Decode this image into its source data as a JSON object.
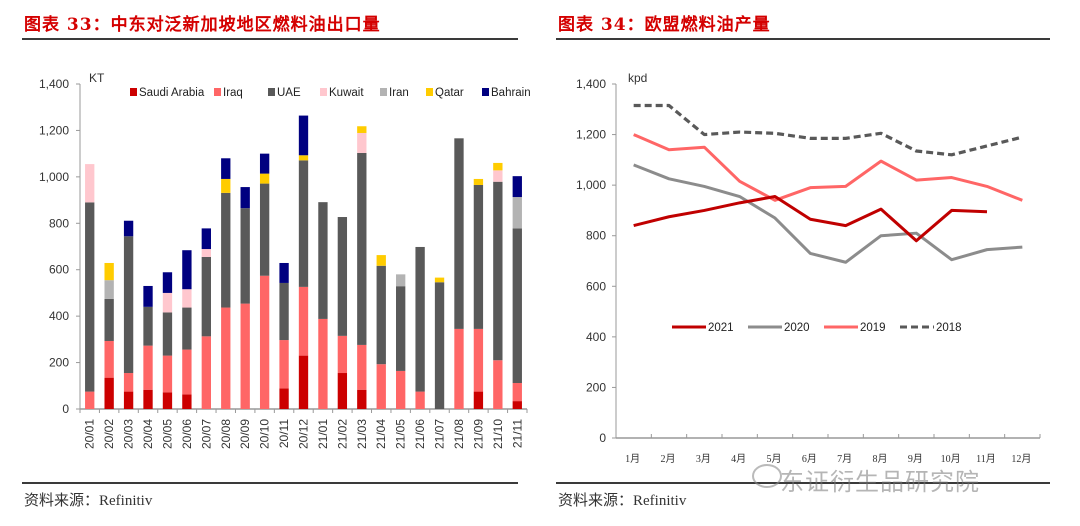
{
  "left_panel": {
    "title": "图表 33：中东对泛新加坡地区燃料油出口量",
    "source": "资料来源：Refinitiv"
  },
  "right_panel": {
    "title": "图表 34：欧盟燃料油产量",
    "source": "资料来源：Refinitiv"
  },
  "watermark": {
    "text": "东证衍生品研究院",
    "icon": "wechat-icon"
  },
  "chart_data": [
    {
      "type": "bar",
      "stacked": true,
      "title": "中东对泛新加坡地区燃料油出口量",
      "unit_label": "KT",
      "xlabel": "",
      "ylabel": "KT",
      "ylim": [
        0,
        1400
      ],
      "yticks": [
        0,
        200,
        400,
        600,
        800,
        1000,
        1200,
        1400
      ],
      "ytick_labels": [
        "0",
        "200",
        "400",
        "600",
        "800",
        "1,000",
        "1,200",
        "1,400"
      ],
      "grid": false,
      "legend_position": "top",
      "categories": [
        "20/01",
        "20/02",
        "20/03",
        "20/04",
        "20/05",
        "20/06",
        "20/07",
        "20/08",
        "20/09",
        "20/10",
        "20/11",
        "20/12",
        "21/01",
        "21/02",
        "21/03",
        "21/04",
        "21/05",
        "21/06",
        "21/07",
        "21/08",
        "21/09",
        "21/10",
        "21/11"
      ],
      "series": [
        {
          "name": "Saudi Arabia",
          "color": "#cc0000",
          "values": [
            0,
            135,
            75,
            83,
            72,
            63,
            0,
            0,
            0,
            0,
            89,
            230,
            0,
            155,
            83,
            0,
            0,
            0,
            0,
            0,
            75,
            0,
            34
          ]
        },
        {
          "name": "Iraq",
          "color": "#ff6666",
          "values": [
            75,
            158,
            80,
            190,
            158,
            193,
            313,
            437,
            454,
            574,
            208,
            296,
            388,
            160,
            193,
            193,
            164,
            75,
            0,
            345,
            270,
            210,
            78
          ]
        },
        {
          "name": "UAE",
          "color": "#595959",
          "values": [
            815,
            181,
            589,
            167,
            186,
            181,
            342,
            494,
            411,
            397,
            246,
            545,
            503,
            512,
            827,
            424,
            365,
            623,
            546,
            821,
            620,
            769,
            666
          ]
        },
        {
          "name": "Kuwait",
          "color": "#ffc7ce",
          "values": [
            165,
            0,
            0,
            0,
            84,
            79,
            34,
            0,
            0,
            0,
            0,
            0,
            0,
            0,
            86,
            0,
            0,
            0,
            0,
            0,
            0,
            49,
            0
          ]
        },
        {
          "name": "Iran",
          "color": "#b3b3b3",
          "values": [
            0,
            81,
            0,
            0,
            0,
            0,
            0,
            0,
            0,
            0,
            0,
            0,
            0,
            0,
            0,
            0,
            51,
            0,
            0,
            0,
            0,
            0,
            135
          ]
        },
        {
          "name": "Qatar",
          "color": "#ffcc00",
          "values": [
            0,
            74,
            0,
            0,
            0,
            0,
            0,
            60,
            0,
            43,
            0,
            22,
            0,
            0,
            29,
            46,
            0,
            0,
            20,
            0,
            26,
            32,
            0
          ]
        },
        {
          "name": "Bahrain",
          "color": "#000080",
          "values": [
            0,
            0,
            67,
            90,
            89,
            168,
            89,
            89,
            91,
            86,
            86,
            171,
            0,
            0,
            0,
            0,
            0,
            0,
            0,
            0,
            0,
            0,
            90
          ]
        }
      ]
    },
    {
      "type": "line",
      "title": "欧盟燃料油产量",
      "unit_label": "kpd",
      "xlabel": "",
      "ylabel": "kpd",
      "ylim": [
        0,
        1400
      ],
      "yticks": [
        0,
        200,
        400,
        600,
        800,
        1000,
        1200,
        1400
      ],
      "ytick_labels": [
        "0",
        "200",
        "400",
        "600",
        "800",
        "1,000",
        "1,200",
        "1,400"
      ],
      "grid": false,
      "legend_position": "center",
      "categories": [
        "1月",
        "2月",
        "3月",
        "4月",
        "5月",
        "6月",
        "7月",
        "8月",
        "9月",
        "10月",
        "11月",
        "12月"
      ],
      "series": [
        {
          "name": "2021",
          "color": "#c00000",
          "dash": false,
          "values": [
            840,
            875,
            900,
            930,
            955,
            865,
            840,
            905,
            780,
            900,
            895,
            null
          ]
        },
        {
          "name": "2020",
          "color": "#8c8c8c",
          "dash": false,
          "values": [
            1080,
            1025,
            995,
            955,
            870,
            730,
            695,
            800,
            810,
            705,
            745,
            755
          ]
        },
        {
          "name": "2019",
          "color": "#ff6666",
          "dash": false,
          "values": [
            1200,
            1140,
            1150,
            1015,
            940,
            990,
            995,
            1095,
            1020,
            1030,
            995,
            940
          ]
        },
        {
          "name": "2018",
          "color": "#595959",
          "dash": true,
          "values": [
            1315,
            1315,
            1200,
            1210,
            1205,
            1185,
            1185,
            1205,
            1135,
            1120,
            1155,
            1190
          ]
        }
      ]
    }
  ]
}
